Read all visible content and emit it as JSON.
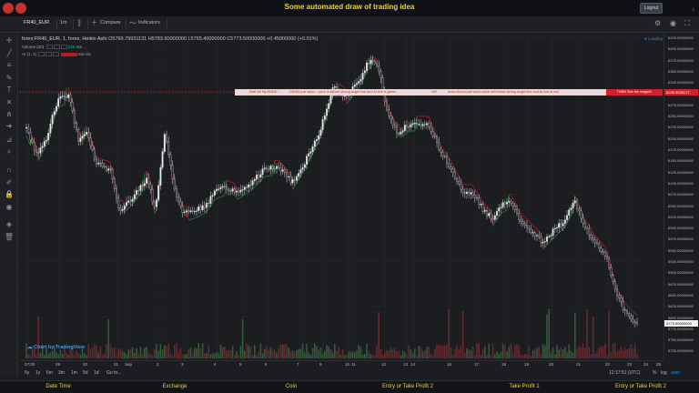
{
  "app": {
    "title": "Some automated draw of trading idea",
    "logout_label": "Logout"
  },
  "toolbar": {
    "symbol": "FR40_EUR",
    "interval": "1m",
    "compare_label": "Compare",
    "indicators_label": "Indicators"
  },
  "legend": {
    "title": "forex:FR40_EUR, 1, forex, Heikin Ashi",
    "open": "O5769.79931131",
    "high": "H5783.60000000",
    "low": "L5765.40000000",
    "close": "C5773.50000000",
    "change": "+0.45000000 (+0.01%)",
    "volume_label": "Volume (20)",
    "volume_value": "236",
    "volume_na": "n/a",
    "ai_label": "AI (1, 1)",
    "ai_na1": "n/a",
    "ai_na2": "n/a"
  },
  "loading_label": "Loading",
  "banner": {
    "part1": "Wall hill flip ENDE !",
    "part2": "DRAW just when : price is above strong angle line and AI line is green",
    "or": "OR",
    "part3": "draw shorts just when price still below strong angle line and AI line is red",
    "magic": "THEN See the magic!!!"
  },
  "price_axis": {
    "ticks": [
      "6425.00000000",
      "6400.00000000",
      "6375.00000000",
      "6350.00000000",
      "6325.00000000",
      "6300.00000000",
      "6275.00000000",
      "6250.00000000",
      "6225.00000000",
      "6200.00000000",
      "6175.00000000",
      "6150.00000000",
      "6125.00000000",
      "6100.00000000",
      "6075.00000000",
      "6050.00000000",
      "6025.00000000",
      "6000.00000000",
      "5975.00000000",
      "5950.00000000",
      "5925.00000000",
      "5900.00000000",
      "5875.00000000",
      "5850.00000000",
      "5825.00000000",
      "5800.00000000",
      "5775.00000000",
      "5750.00000000",
      "5725.00000000"
    ],
    "red_label": "6295.3028177",
    "last_price": "5773.50000000"
  },
  "time_axis": [
    "07:00",
    "29",
    "30",
    "31",
    "Sep",
    "2",
    "3",
    "4",
    "5",
    "6",
    "7",
    "9",
    "10",
    "11",
    "12",
    "13",
    "14",
    "16",
    "17",
    "18",
    "19",
    "20",
    "21",
    "22",
    "23",
    "24",
    "25",
    "26"
  ],
  "periods": [
    "5y",
    "1y",
    "6m",
    "3m",
    "1m",
    "5d",
    "1d",
    "Go to..."
  ],
  "clock": "12:17:51 (UTC)",
  "scale_toggles": {
    "percent": "%",
    "log": "log",
    "auto": "auto"
  },
  "watermark": "Chart by TradingView",
  "bottom_columns": [
    "Date Time",
    "Exchange",
    "Coin",
    "Entry or Take Profit 2",
    "Take Profit 1",
    "Entry or Take Profit 2"
  ],
  "colors": {
    "up": "#26a69a",
    "down": "#ef5350",
    "ai_green": "#1f8a2f",
    "ai_red": "#b21c24",
    "banner_red": "#d3202d",
    "accent_yellow": "#f0d428"
  }
}
